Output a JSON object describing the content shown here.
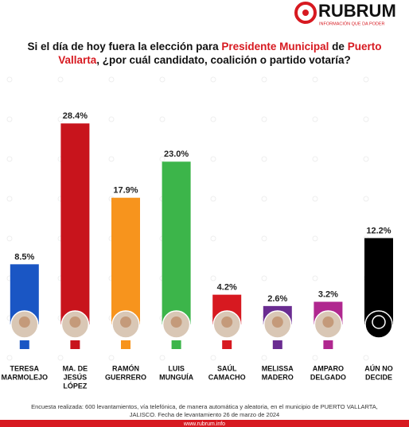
{
  "brand": {
    "name": "RUBRUM",
    "tagline": "INFORMACIÓN QUE DA PODER"
  },
  "chart_data": {
    "type": "bar",
    "title": [
      {
        "text": "Si el día de hoy fuera la elección para ",
        "color": "#111111"
      },
      {
        "text": "Presidente Municipal",
        "color": "#d71920"
      },
      {
        "text": " de ",
        "color": "#111111"
      },
      {
        "text": "Puerto Vallarta",
        "color": "#d71920"
      },
      {
        "text": ", ¿por cuál candidato, coalición o partido votaría?",
        "color": "#111111"
      }
    ],
    "categories": [
      [
        "TERESA",
        "MARMOLEJO"
      ],
      [
        "MA. DE",
        "JESÚS",
        "LÓPEZ"
      ],
      [
        "RAMÓN",
        "GUERRERO"
      ],
      [
        "LUIS",
        "MUNGUÍA"
      ],
      [
        "SAÚL",
        "CAMACHO"
      ],
      [
        "MELISSA",
        "MADERO"
      ],
      [
        "AMPARO",
        "DELGADO"
      ],
      [
        "AÚN NO",
        "DECIDE"
      ]
    ],
    "values": [
      8.5,
      28.4,
      17.9,
      23.0,
      4.2,
      2.6,
      3.2,
      12.2
    ],
    "value_labels": [
      "8.5%",
      "28.4%",
      "17.9%",
      "23.0%",
      "4.2%",
      "2.6%",
      "3.2%",
      "12.2%"
    ],
    "colors": [
      "#1a56c4",
      "#c8141c",
      "#f7941d",
      "#3cb54a",
      "#d71920",
      "#6a2c91",
      "#b0278f",
      "#000000"
    ]
  },
  "footer": {
    "note": [
      "Encuesta realizada: 600 levantamientos, vía telefónica, de manera automática y aleatoria, en el municipio de PUERTO VALLARTA,",
      "JALISCO. Fecha de levantamiento 26 de marzo de 2024"
    ],
    "website": "www.rubrum.info"
  }
}
